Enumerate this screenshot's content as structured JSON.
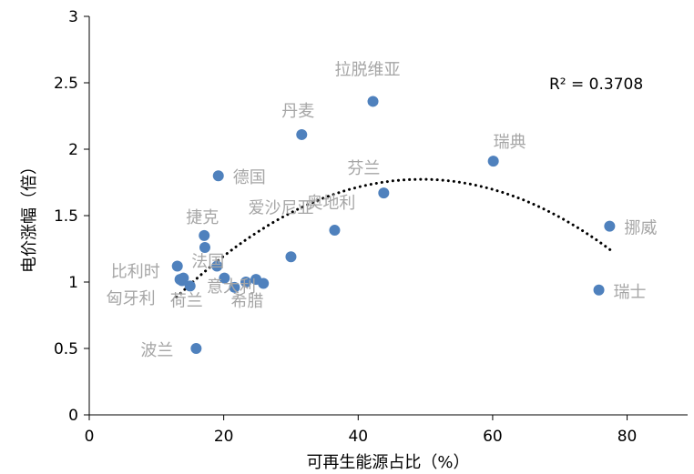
{
  "chart_data": {
    "type": "scatter",
    "xlabel": "可再生能源占比（%）",
    "ylabel": "电价涨幅（倍）",
    "xlim": [
      0,
      89
    ],
    "ylim": [
      0,
      3
    ],
    "xticks": [
      "0",
      "20",
      "40",
      "60",
      "80"
    ],
    "yticks": [
      "0",
      "0.5",
      "1",
      "1.5",
      "2",
      "2.5",
      "3"
    ],
    "grid": false,
    "annotation": "R² = 0.3708",
    "colors": {
      "marker": "#4f81bd",
      "trend": "#000000",
      "label": "#a6a6a6"
    },
    "trendline": {
      "type": "polynomial-order-2",
      "x_range": [
        13,
        77.5
      ]
    },
    "points": [
      {
        "label": "拉脱维亚",
        "x": 42.2,
        "y": 2.36
      },
      {
        "label": "丹麦",
        "x": 31.6,
        "y": 2.11
      },
      {
        "label": "瑞典",
        "x": 60.1,
        "y": 1.91
      },
      {
        "label": "德国",
        "x": 19.2,
        "y": 1.8
      },
      {
        "label": "芬兰",
        "x": 43.8,
        "y": 1.67
      },
      {
        "label": "挪威",
        "x": 77.4,
        "y": 1.42
      },
      {
        "label": "奥地利",
        "x": 36.5,
        "y": 1.39
      },
      {
        "label": "捷克",
        "x": 17.1,
        "y": 1.35
      },
      {
        "label": "",
        "x": 17.2,
        "y": 1.26
      },
      {
        "label": "爱沙尼亚",
        "x": 30.0,
        "y": 1.19
      },
      {
        "label": "比利时",
        "x": 13.1,
        "y": 1.12
      },
      {
        "label": "法国",
        "x": 19.0,
        "y": 1.12
      },
      {
        "label": "",
        "x": 14.0,
        "y": 1.03
      },
      {
        "label": "",
        "x": 13.8,
        "y": 1.01
      },
      {
        "label": "",
        "x": 20.1,
        "y": 1.03
      },
      {
        "label": "意大利",
        "x": 23.3,
        "y": 1.0
      },
      {
        "label": "",
        "x": 24.8,
        "y": 1.02
      },
      {
        "label": "",
        "x": 25.9,
        "y": 0.99
      },
      {
        "label": "希腊",
        "x": 21.6,
        "y": 0.96
      },
      {
        "label": "匈牙利",
        "x": 13.5,
        "y": 1.02
      },
      {
        "label": "荷兰",
        "x": 15.0,
        "y": 0.97
      },
      {
        "label": "瑞士",
        "x": 75.8,
        "y": 0.94
      },
      {
        "label": "波兰",
        "x": 15.9,
        "y": 0.5
      }
    ]
  }
}
